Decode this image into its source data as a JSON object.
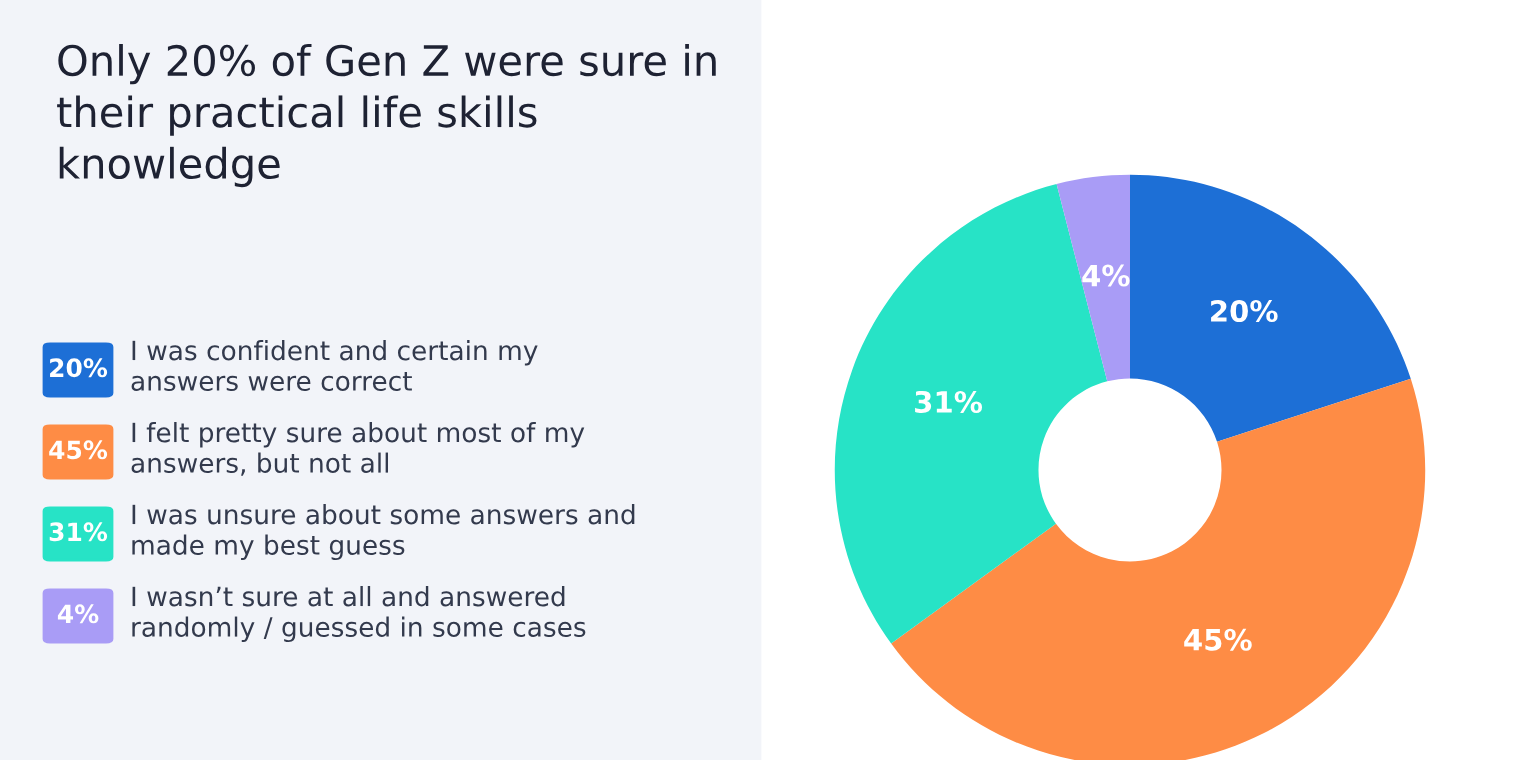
{
  "chart_data": {
    "type": "donut",
    "title": "Only 20% of Gen Z were sure in their practical life skills knowledge",
    "categories": [
      "I was confident and certain my answers were correct",
      "I felt pretty sure about most of my answers, but not all",
      "I was unsure about some answers and made my best guess",
      "I wasn’t sure at all and answered randomly / guessed in some cases"
    ],
    "values": [
      20,
      45,
      31,
      4
    ],
    "colors": [
      "#1d6fd6",
      "#fe8c45",
      "#27e3c6",
      "#a99cf6"
    ],
    "value_labels": [
      "20%",
      "45%",
      "31%",
      "4%"
    ],
    "legend": "left"
  }
}
